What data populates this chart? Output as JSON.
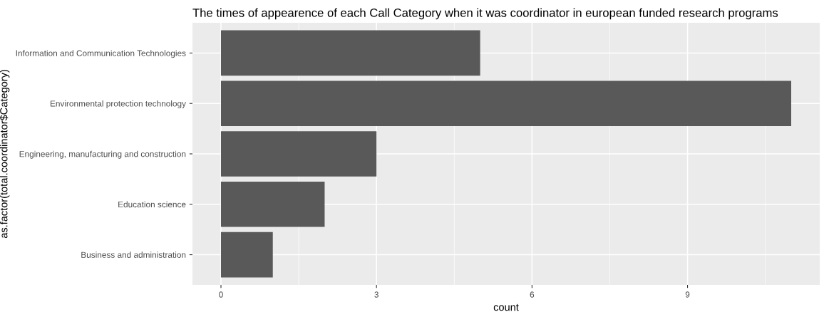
{
  "chart_data": {
    "type": "bar",
    "orientation": "horizontal",
    "title": "The times of appearence of each Call Category when it was coordinator in european funded research programs",
    "xlabel": "count",
    "ylabel": "as.factor(total.coordinator$Category)",
    "categories": [
      "Information and Communication Technologies",
      "Environmental protection technology",
      "Engineering, manufacturing and construction",
      "Education science",
      "Business and administration"
    ],
    "values": [
      5,
      11,
      3,
      2,
      1
    ],
    "color": "#595959",
    "xlim": [
      -0.55,
      11.55
    ],
    "xticks": [
      0,
      3,
      6,
      9
    ],
    "grid": true
  }
}
